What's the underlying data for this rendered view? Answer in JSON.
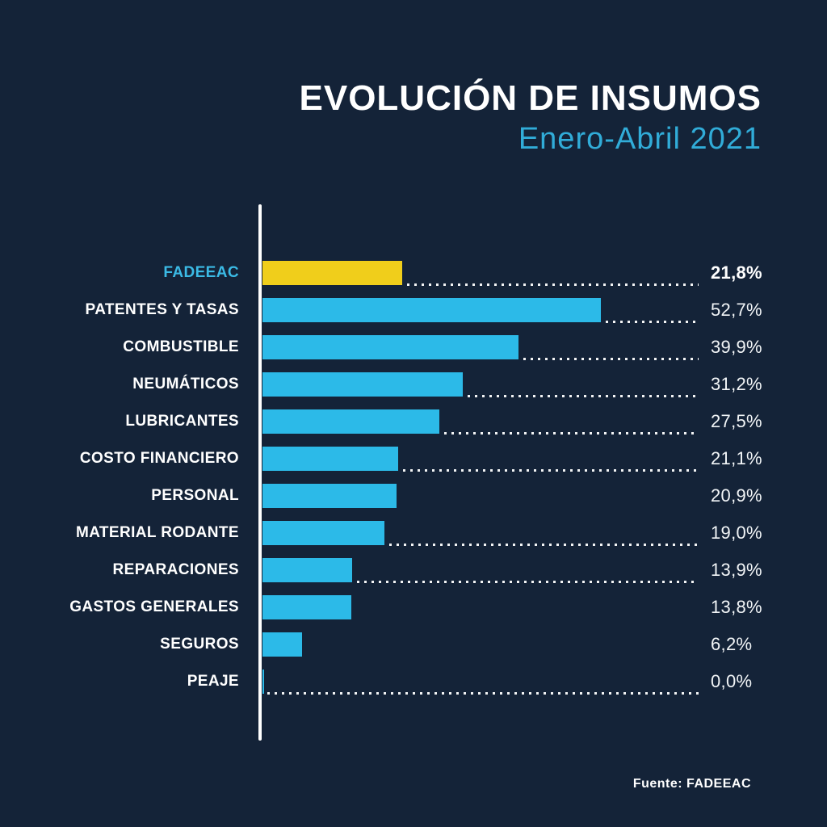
{
  "background": "#142338",
  "header": {
    "title": "EVOLUCIÓN DE INSUMOS",
    "subtitle": "Enero-Abril 2021",
    "title_color": "#ffffff",
    "subtitle_color": "#31acd8"
  },
  "footer": {
    "source": "Fuente: FADEEAC"
  },
  "chart_data": {
    "type": "bar",
    "orientation": "horizontal",
    "title": "EVOLUCIÓN DE INSUMOS",
    "subtitle": "Enero-Abril 2021",
    "categories": [
      "FADEEAC",
      "PATENTES Y TASAS",
      "COMBUSTIBLE",
      "NEUMÁTICOS",
      "LUBRICANTES",
      "COSTO FINANCIERO",
      "PERSONAL",
      "MATERIAL RODANTE",
      "REPARACIONES",
      "GASTOS GENERALES",
      "SEGUROS",
      "PEAJE"
    ],
    "values": [
      21.8,
      52.7,
      39.9,
      31.2,
      27.5,
      21.1,
      20.9,
      19.0,
      13.9,
      13.8,
      6.2,
      0.0
    ],
    "value_labels": [
      "21,8%",
      "52,7%",
      "39,9%",
      "31,2%",
      "27,5%",
      "21,1%",
      "20,9%",
      "19,0%",
      "13,9%",
      "13,8%",
      "6,2%",
      "0,0%"
    ],
    "value_suffix": "%",
    "decimal_separator": ",",
    "xlim": [
      0,
      55
    ],
    "grid": false,
    "legend": "none",
    "highlight_index": 0,
    "bar_colors": {
      "default": "#2cbae8",
      "highlight": "#f0ce1b"
    },
    "label_colors": {
      "default": "#ffffff",
      "highlight": "#3bbae5"
    },
    "leader_line_color": "#ffffff",
    "leader_line_rows": [
      0,
      1,
      2,
      3,
      4,
      5,
      7,
      8,
      11
    ],
    "axis_line_color": "#ffffff",
    "source": "Fuente: FADEEAC"
  }
}
